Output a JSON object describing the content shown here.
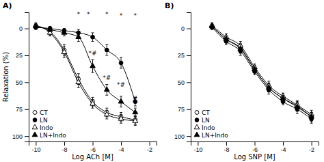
{
  "chart_data": [
    {
      "type": "line",
      "title": "A)",
      "xlabel": "Log ACh [M]",
      "ylabel": "Relaxation (%)",
      "xlim": [
        -10.5,
        -1.5
      ],
      "ylim": [
        105,
        -15
      ],
      "xticks": [
        -10,
        -8,
        -6,
        -4,
        -2
      ],
      "yticks": [
        0,
        25,
        50,
        75,
        100
      ],
      "grid": false,
      "legend": "lower left",
      "x": [
        -10,
        -9,
        -8,
        -7,
        -6,
        -5,
        -4,
        -3
      ],
      "series": [
        {
          "name": "CT",
          "color": "#000000",
          "marker": "circle-open",
          "values": [
            -2,
            3,
            20,
            47,
            68,
            78,
            82,
            85
          ],
          "errors": [
            2,
            3,
            5,
            5,
            4,
            4,
            4,
            4
          ]
        },
        {
          "name": "LN",
          "color": "#000000",
          "marker": "circle",
          "values": [
            -1,
            0,
            2,
            4,
            8,
            20,
            32,
            68
          ],
          "errors": [
            2,
            2,
            2,
            3,
            4,
            5,
            5,
            4
          ]
        },
        {
          "name": "Indo",
          "color": "#000000",
          "marker": "triangle-open",
          "values": [
            -3,
            4,
            22,
            50,
            70,
            80,
            84,
            86
          ],
          "errors": [
            2,
            3,
            5,
            5,
            4,
            4,
            4,
            4
          ]
        },
        {
          "name": "LN+Indo",
          "color": "#000000",
          "marker": "triangle",
          "values": [
            -2,
            1,
            4,
            8,
            35,
            57,
            68,
            78
          ],
          "errors": [
            2,
            2,
            3,
            4,
            6,
            5,
            5,
            4
          ]
        }
      ],
      "annotations": [
        {
          "text": "*",
          "x": -7,
          "y": -11
        },
        {
          "text": "*",
          "x": -6.3,
          "y": -11
        },
        {
          "text": "*#",
          "x": -6,
          "y": 25
        },
        {
          "text": "*",
          "x": -5,
          "y": -11
        },
        {
          "text": "*#",
          "x": -5,
          "y": 48
        },
        {
          "text": "*",
          "x": -4,
          "y": -10
        },
        {
          "text": "*#",
          "x": -4,
          "y": 54
        },
        {
          "text": "*",
          "x": -3,
          "y": -10
        },
        {
          "text": "#",
          "x": -3,
          "y": 67
        }
      ]
    },
    {
      "type": "line",
      "title": "B)",
      "xlabel": "Log SNP [M]",
      "xlim": [
        -10.5,
        -1.5
      ],
      "ylim": [
        105,
        -15
      ],
      "xticks": [
        -10,
        -8,
        -6,
        -4,
        -2
      ],
      "yticks": [
        0,
        25,
        50,
        75,
        100
      ],
      "grid": false,
      "legend": "lower left",
      "x": [
        -9,
        -8,
        -7,
        -6,
        -5,
        -4,
        -3,
        -2
      ],
      "series": [
        {
          "name": "CT",
          "color": "#000000",
          "marker": "circle-open",
          "values": [
            -2,
            10,
            18,
            38,
            55,
            65,
            72,
            82
          ],
          "errors": [
            2,
            3,
            4,
            3,
            4,
            3,
            4,
            4
          ]
        },
        {
          "name": "LN",
          "color": "#000000",
          "marker": "circle",
          "values": [
            -1,
            12,
            21,
            40,
            57,
            68,
            75,
            84
          ],
          "errors": [
            2,
            3,
            4,
            3,
            4,
            3,
            4,
            4
          ]
        },
        {
          "name": "Indo",
          "color": "#000000",
          "marker": "triangle-open",
          "values": [
            -3,
            8,
            16,
            36,
            53,
            63,
            71,
            80
          ],
          "errors": [
            2,
            3,
            4,
            3,
            4,
            3,
            4,
            4
          ]
        },
        {
          "name": "LN+Indo",
          "color": "#000000",
          "marker": "triangle",
          "values": [
            -2,
            10,
            19,
            38,
            55,
            65,
            73,
            82
          ],
          "errors": [
            2,
            3,
            4,
            3,
            4,
            3,
            4,
            4
          ]
        }
      ]
    }
  ]
}
